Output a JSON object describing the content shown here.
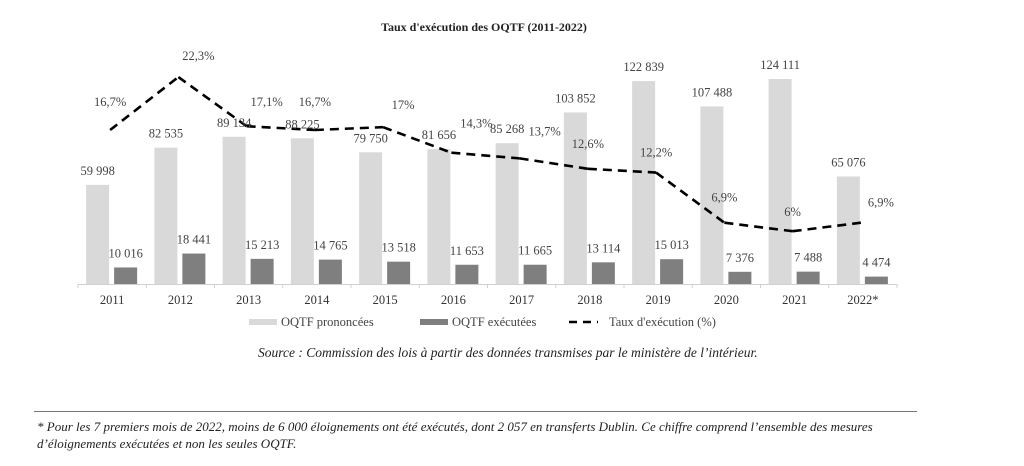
{
  "chart_data": {
    "type": "bar",
    "title": "Taux d'exécution des OQTF (2011-2022)",
    "categories": [
      "2011",
      "2012",
      "2013",
      "2014",
      "2015",
      "2016",
      "2017",
      "2018",
      "2019",
      "2020",
      "2021",
      "2022*"
    ],
    "series": [
      {
        "name": "OQTF prononcées",
        "kind": "bar",
        "color": "#d9d9d9",
        "values": [
          59998,
          82535,
          89134,
          88225,
          79750,
          81656,
          85268,
          103852,
          122839,
          107488,
          124111,
          65076
        ],
        "labels": [
          "59 998",
          "82 535",
          "89 134",
          "88 225",
          "79 750",
          "81 656",
          "85 268",
          "103 852",
          "122 839",
          "107 488",
          "124 111",
          "65 076"
        ]
      },
      {
        "name": "OQTF exécutées",
        "kind": "bar",
        "color": "#7f7f7f",
        "values": [
          10016,
          18441,
          15213,
          14765,
          13518,
          11653,
          11665,
          13114,
          15013,
          7376,
          7488,
          4474
        ],
        "labels": [
          "10 016",
          "18 441",
          "15 213",
          "14 765",
          "13 518",
          "11 653",
          "11 665",
          "13 114",
          "15 013",
          "7 376",
          "7 488",
          "4 474"
        ]
      },
      {
        "name": "Taux d'exécution (%)",
        "kind": "line",
        "style": "dashed",
        "color": "#000000",
        "values": [
          16.7,
          22.3,
          17.1,
          16.7,
          17.0,
          14.3,
          13.7,
          12.6,
          12.2,
          6.9,
          6.0,
          6.9
        ],
        "labels": [
          "16,7%",
          "22,3%",
          "17,1%",
          "16,7%",
          "17%",
          "14,3%",
          "13,7%",
          "12,6%",
          "12,2%",
          "6,9%",
          "6%",
          "6,9%"
        ]
      }
    ],
    "xlabel": "",
    "ylabel": "",
    "ylim": [
      0,
      125000
    ],
    "grid": false,
    "legend": "bottom"
  },
  "source": "Source : Commission des lois à partir des données transmises par le ministère de l’intérieur.",
  "footnote": "* Pour les 7 premiers mois de 2022, moins de 6 000 éloignements ont été exécutés, dont 2 057 en transferts Dublin. Ce chiffre comprend l’ensemble des mesures d’éloignements exécutées et non les seules OQTF."
}
